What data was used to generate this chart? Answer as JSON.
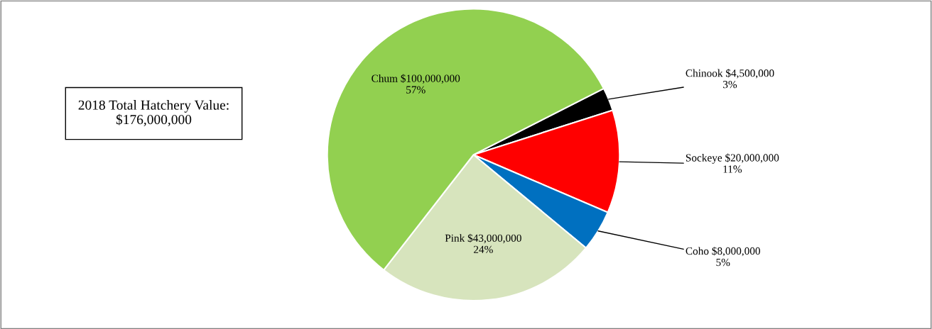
{
  "chart_data": {
    "type": "pie",
    "categories": [
      "Chinook",
      "Sockeye",
      "Coho",
      "Pink",
      "Chum"
    ],
    "values": [
      4500000,
      20000000,
      8000000,
      43000000,
      100000000
    ],
    "colors": [
      "#000000",
      "#ff0000",
      "#0070c0",
      "#d7e4bd",
      "#92d050"
    ],
    "value_labels": [
      "$4,500,000\n3%",
      "$20,000,000\n11%",
      "$8,000,000\n5%",
      "$43,000,000\n24%",
      "$100,000,000\n57%"
    ],
    "annotations": [
      "2018 Total Hatchery Value:\n$176,000,000"
    ],
    "legend": false
  }
}
